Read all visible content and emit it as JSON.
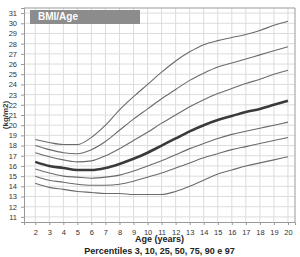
{
  "chart_data": {
    "type": "line",
    "title": "BMI/Age",
    "xlabel": "Age (years)",
    "ylabel": "(kg/m2)",
    "subtitle": "Percentiles 3, 10, 25, 50, 75, 90 e 97",
    "x": [
      2,
      3,
      4,
      5,
      6,
      7,
      8,
      9,
      10,
      11,
      12,
      13,
      14,
      15,
      16,
      17,
      18,
      19,
      20
    ],
    "xlim": [
      1.2,
      20.5
    ],
    "xticks": [
      2,
      3,
      4,
      5,
      6,
      7,
      8,
      9,
      10,
      11,
      12,
      13,
      14,
      15,
      16,
      17,
      18,
      19,
      20
    ],
    "ylim": [
      10.5,
      31.5
    ],
    "yticks": [
      11,
      12,
      13,
      14,
      15,
      16,
      17,
      18,
      19,
      20,
      21,
      22,
      23,
      24,
      25,
      26,
      27,
      28,
      29,
      30,
      31
    ],
    "grid": true,
    "series": [
      {
        "color": "#6b6b6b",
        "line_style": "solid",
        "values": [
          18.6,
          18.3,
          18.1,
          18.1,
          18.8,
          20.0,
          21.5,
          22.8,
          24.0,
          25.2,
          26.3,
          27.2,
          27.9,
          28.3,
          28.6,
          28.9,
          29.3,
          29.8,
          30.2
        ]
      },
      {
        "color": "#6b6b6b",
        "line_style": "solid",
        "values": [
          18.0,
          17.6,
          17.3,
          17.2,
          17.6,
          18.4,
          19.5,
          20.6,
          21.6,
          22.6,
          23.5,
          24.4,
          25.1,
          25.7,
          26.1,
          26.5,
          26.9,
          27.3,
          27.7
        ]
      },
      {
        "color": "#6b6b6b",
        "line_style": "solid",
        "values": [
          17.3,
          16.9,
          16.6,
          16.4,
          16.5,
          17.0,
          17.7,
          18.5,
          19.3,
          20.2,
          21.0,
          21.8,
          22.5,
          23.1,
          23.6,
          24.1,
          24.5,
          25.0,
          25.4
        ]
      },
      {
        "color": "#3a3a3a",
        "line_style": "thick",
        "values": [
          16.4,
          16.0,
          15.8,
          15.6,
          15.6,
          15.8,
          16.2,
          16.7,
          17.3,
          18.0,
          18.7,
          19.4,
          20.0,
          20.5,
          20.9,
          21.3,
          21.6,
          22.0,
          22.4
        ]
      },
      {
        "color": "#6b6b6b",
        "line_style": "solid",
        "values": [
          15.7,
          15.3,
          15.0,
          14.9,
          14.8,
          14.9,
          15.1,
          15.5,
          16.0,
          16.5,
          17.1,
          17.7,
          18.2,
          18.7,
          19.1,
          19.4,
          19.7,
          20.0,
          20.3
        ]
      },
      {
        "color": "#6b6b6b",
        "line_style": "solid",
        "values": [
          15.0,
          14.6,
          14.4,
          14.2,
          14.1,
          14.1,
          14.2,
          14.5,
          14.9,
          15.3,
          15.8,
          16.3,
          16.8,
          17.2,
          17.6,
          17.9,
          18.2,
          18.5,
          18.8
        ]
      },
      {
        "color": "#6b6b6b",
        "line_style": "solid",
        "values": [
          14.3,
          13.9,
          13.7,
          13.5,
          13.4,
          13.3,
          13.3,
          13.2,
          13.2,
          13.2,
          13.5,
          14.0,
          14.6,
          15.2,
          15.6,
          16.0,
          16.3,
          16.6,
          16.9
        ]
      }
    ]
  }
}
